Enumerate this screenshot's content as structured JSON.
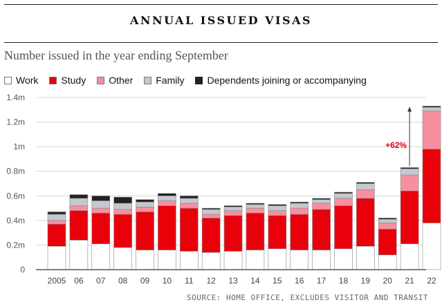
{
  "chart_data": {
    "type": "bar",
    "stacked": true,
    "title": "ANNUAL ISSUED VISAS",
    "subtitle": "Number issued in the year ending September",
    "source": "SOURCE: HOME OFFICE, EXCLUDES VISITOR AND TRANSIT",
    "annotation": "+62%",
    "categories": [
      "2005",
      "06",
      "07",
      "08",
      "09",
      "10",
      "11",
      "12",
      "13",
      "14",
      "15",
      "16",
      "17",
      "18",
      "19",
      "20",
      "21",
      "22"
    ],
    "y_ticks": [
      "0",
      "0.2m",
      "0.4m",
      "0.6m",
      "0.8m",
      "1m",
      "1.2m",
      "1.4m"
    ],
    "ylim": [
      0,
      1.4
    ],
    "grid": true,
    "legend_position": "top",
    "series": [
      {
        "name": "Work",
        "color": "#ffffff",
        "values": [
          0.19,
          0.24,
          0.21,
          0.18,
          0.16,
          0.16,
          0.15,
          0.14,
          0.15,
          0.16,
          0.17,
          0.16,
          0.16,
          0.17,
          0.19,
          0.12,
          0.21,
          0.38
        ]
      },
      {
        "name": "Study",
        "color": "#e8000b",
        "values": [
          0.18,
          0.24,
          0.25,
          0.27,
          0.31,
          0.36,
          0.35,
          0.28,
          0.29,
          0.3,
          0.27,
          0.29,
          0.33,
          0.35,
          0.39,
          0.21,
          0.43,
          0.6
        ]
      },
      {
        "name": "Other",
        "color": "#f78fa0",
        "values": [
          0.03,
          0.04,
          0.04,
          0.04,
          0.04,
          0.04,
          0.04,
          0.03,
          0.04,
          0.04,
          0.04,
          0.05,
          0.05,
          0.06,
          0.07,
          0.05,
          0.13,
          0.31
        ]
      },
      {
        "name": "Family",
        "color": "#c4c8cf",
        "values": [
          0.05,
          0.06,
          0.06,
          0.05,
          0.04,
          0.04,
          0.04,
          0.04,
          0.03,
          0.03,
          0.04,
          0.04,
          0.03,
          0.04,
          0.05,
          0.03,
          0.05,
          0.03
        ]
      },
      {
        "name": "Dependents joining or accompanying",
        "color": "#222222",
        "values": [
          0.02,
          0.03,
          0.04,
          0.05,
          0.02,
          0.02,
          0.02,
          0.01,
          0.01,
          0.01,
          0.01,
          0.01,
          0.01,
          0.01,
          0.01,
          0.01,
          0.01,
          0.01
        ]
      }
    ]
  }
}
